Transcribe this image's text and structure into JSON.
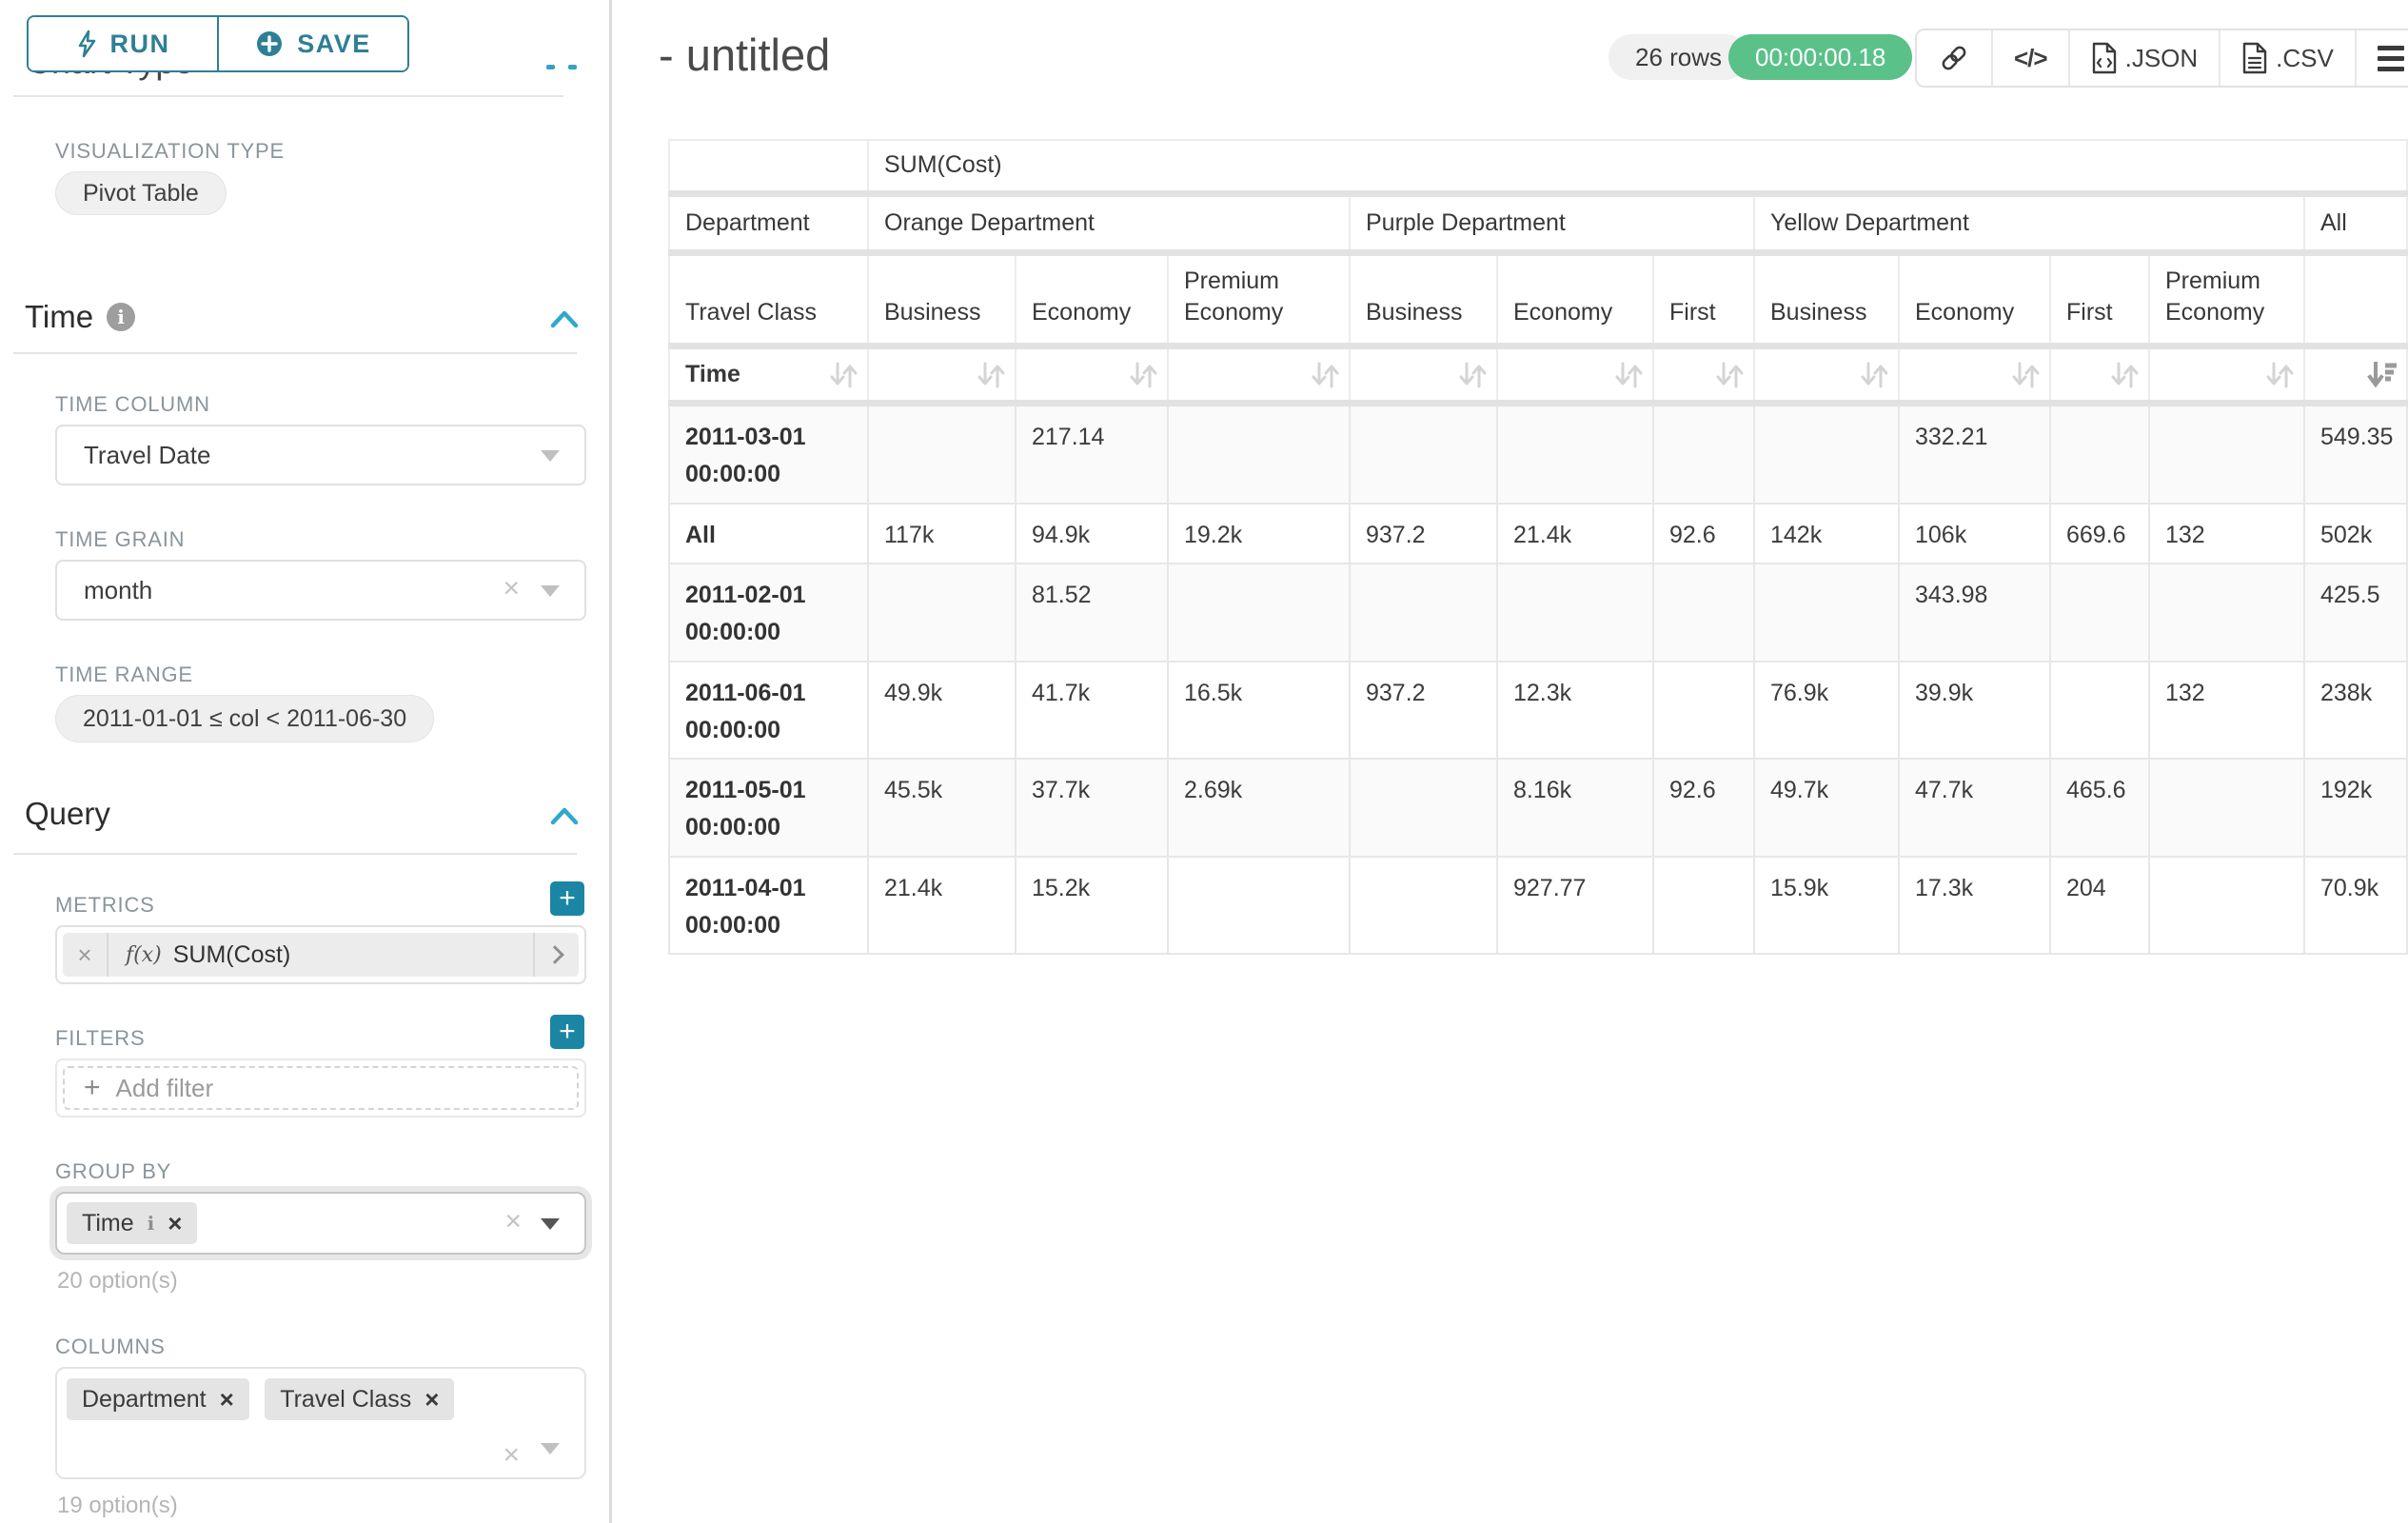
{
  "sidebar": {
    "run_label": "RUN",
    "save_label": "SAVE",
    "chart_type_heading": "Chart Type",
    "viz": {
      "label": "VISUALIZATION TYPE",
      "value": "Pivot Table"
    },
    "time": {
      "heading": "Time",
      "column_label": "TIME COLUMN",
      "column_value": "Travel Date",
      "grain_label": "TIME GRAIN",
      "grain_value": "month",
      "range_label": "TIME RANGE",
      "range_value": "2011-01-01 ≤ col < 2011-06-30"
    },
    "query": {
      "heading": "Query",
      "metrics_label": "METRICS",
      "metric": {
        "fx": "f(x)",
        "name": "SUM(Cost)"
      },
      "filters_label": "FILTERS",
      "add_filter_label": "Add filter",
      "group_by": {
        "label": "GROUP BY",
        "chips": [
          {
            "label": "Time"
          }
        ],
        "options_text": "20 option(s)"
      },
      "columns": {
        "label": "COLUMNS",
        "chips": [
          "Department",
          "Travel Class"
        ],
        "options_text": "19 option(s)"
      }
    }
  },
  "header": {
    "title": "- untitled",
    "rows_badge": "26 rows",
    "timer": "00:00:00.18",
    "code_label": "</>",
    "json_label": ".JSON",
    "csv_label": ".CSV"
  },
  "table": {
    "metric_header": "SUM(Cost)",
    "department_label": "Department",
    "travel_class_label": "Travel Class",
    "time_label": "Time",
    "all_label": "All",
    "groups": [
      {
        "label": "Orange Department",
        "classes": [
          "Business",
          "Economy",
          "Premium Economy"
        ]
      },
      {
        "label": "Purple Department",
        "classes": [
          "Business",
          "Economy",
          "First"
        ]
      },
      {
        "label": "Yellow Department",
        "classes": [
          "Business",
          "Economy",
          "First",
          "Premium Economy"
        ]
      }
    ],
    "rows": [
      {
        "label": "2011-03-01 00:00:00",
        "cells": [
          "",
          "217.14",
          "",
          "",
          "",
          "",
          "",
          "332.21",
          "",
          "",
          "549.35"
        ]
      },
      {
        "label": "All",
        "cells": [
          "117k",
          "94.9k",
          "19.2k",
          "937.2",
          "21.4k",
          "92.6",
          "142k",
          "106k",
          "669.6",
          "132",
          "502k"
        ]
      },
      {
        "label": "2011-02-01 00:00:00",
        "cells": [
          "",
          "81.52",
          "",
          "",
          "",
          "",
          "",
          "343.98",
          "",
          "",
          "425.5"
        ]
      },
      {
        "label": "2011-06-01 00:00:00",
        "cells": [
          "49.9k",
          "41.7k",
          "16.5k",
          "937.2",
          "12.3k",
          "",
          "76.9k",
          "39.9k",
          "",
          "132",
          "238k"
        ]
      },
      {
        "label": "2011-05-01 00:00:00",
        "cells": [
          "45.5k",
          "37.7k",
          "2.69k",
          "",
          "8.16k",
          "92.6",
          "49.7k",
          "47.7k",
          "465.6",
          "",
          "192k"
        ]
      },
      {
        "label": "2011-04-01 00:00:00",
        "cells": [
          "21.4k",
          "15.2k",
          "",
          "",
          "927.77",
          "",
          "15.9k",
          "17.3k",
          "204",
          "",
          "70.9k"
        ]
      }
    ]
  }
}
